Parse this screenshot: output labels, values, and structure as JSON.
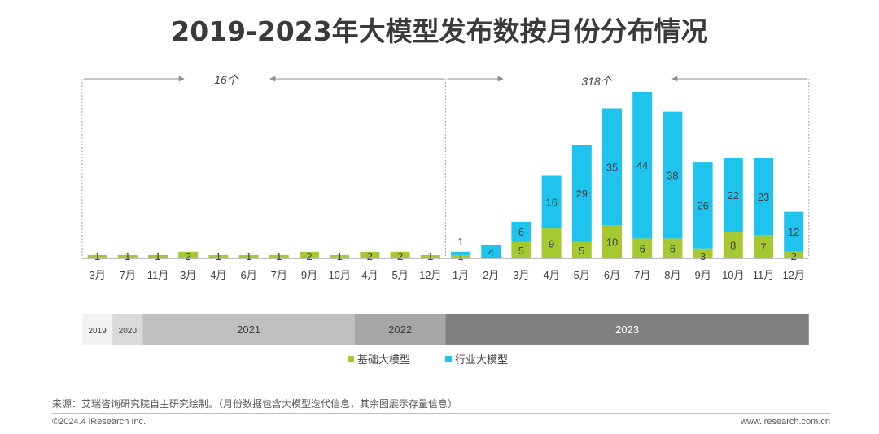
{
  "title": "2019-2023年大模型发布数按月份分布情况",
  "annotations": {
    "left_count": "16个",
    "right_count": "318个"
  },
  "colors": {
    "base": "#a6c831",
    "industry": "#1ec4ee",
    "axis": "#808080",
    "label": "#404040"
  },
  "chart_data": {
    "type": "bar",
    "stacked": true,
    "categories": [
      "3月",
      "7月",
      "11月",
      "3月",
      "4月",
      "6月",
      "7月",
      "9月",
      "10月",
      "4月",
      "5月",
      "12月",
      "1月",
      "2月",
      "3月",
      "4月",
      "5月",
      "6月",
      "7月",
      "8月",
      "9月",
      "10月",
      "11月",
      "12月"
    ],
    "series": [
      {
        "name": "基础大模型",
        "values": [
          1,
          1,
          1,
          2,
          1,
          1,
          1,
          2,
          1,
          2,
          2,
          1,
          1,
          0,
          5,
          9,
          5,
          10,
          6,
          6,
          3,
          8,
          7,
          2
        ]
      },
      {
        "name": "行业大模型",
        "values": [
          0,
          0,
          0,
          0,
          0,
          0,
          0,
          0,
          0,
          0,
          0,
          0,
          1,
          4,
          6,
          16,
          29,
          35,
          44,
          38,
          26,
          22,
          23,
          12
        ]
      }
    ],
    "years": [
      {
        "label": "2019",
        "count": 1,
        "color": "#f2f2f2",
        "text_color": "#404040"
      },
      {
        "label": "2020",
        "count": 1,
        "color": "#d9d9d9",
        "text_color": "#404040"
      },
      {
        "label": "2021",
        "count": 7,
        "color": "#bfbfbf",
        "text_color": "#404040"
      },
      {
        "label": "2022",
        "count": 3,
        "color": "#a6a6a6",
        "text_color": "#404040"
      },
      {
        "label": "2023",
        "count": 12,
        "color": "#808080",
        "text_color": "#ffffff"
      }
    ],
    "ylim": [
      0,
      50
    ],
    "legend": "bottom-center"
  },
  "source": "来源：艾瑞咨询研究院自主研究绘制。（月份数据包含大模型迭代信息，其余图展示存量信息）",
  "copyright": "©2024.4 iResearch Inc.",
  "website": "www.iresearch.com.cn"
}
